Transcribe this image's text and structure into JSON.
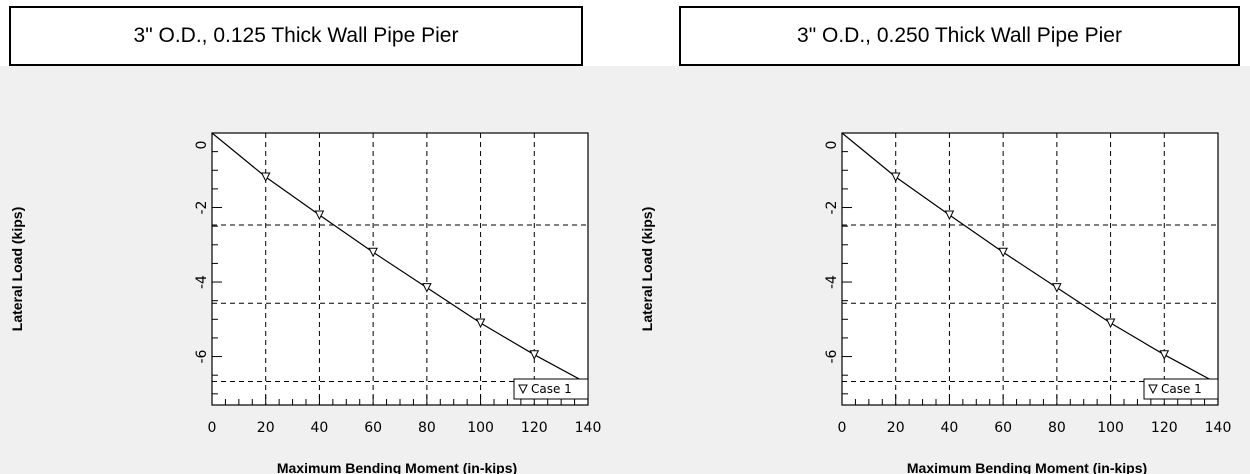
{
  "charts": [
    {
      "title": "3\" O.D., 0.125 Thick Wall Pipe Pier"
    },
    {
      "title": "3\" O.D., 0.250 Thick Wall Pipe Pier"
    }
  ],
  "chart_data": [
    {
      "type": "line",
      "title": "3\" O.D., 0.125 Thick Wall Pipe Pier",
      "xlabel": "Maximum Bending Moment (in-kips)",
      "ylabel": "Lateral Load (kips)",
      "xlim": [
        0,
        140
      ],
      "ylim": [
        -7.3,
        0
      ],
      "xticks": [
        0,
        20,
        40,
        60,
        80,
        100,
        120,
        140
      ],
      "yticks": [
        0,
        -2,
        -4,
        -6
      ],
      "grid": true,
      "legend": "bottom-right",
      "series": [
        {
          "name": "Case 1",
          "marker": "triangle-down",
          "x": [
            0,
            20,
            40,
            60,
            80,
            100,
            120,
            140
          ],
          "y": [
            0,
            -1.18,
            -2.2,
            -3.2,
            -4.15,
            -5.1,
            -5.95,
            -6.73
          ],
          "marker_x": [
            20,
            40,
            60,
            80,
            100,
            120
          ],
          "marker_y": [
            -1.18,
            -2.2,
            -3.2,
            -4.15,
            -5.1,
            -5.95
          ]
        }
      ]
    },
    {
      "type": "line",
      "title": "3\" O.D., 0.250 Thick Wall Pipe Pier",
      "xlabel": "Maximum Bending Moment (in-kips)",
      "ylabel": "Lateral Load (kips)",
      "xlim": [
        0,
        140
      ],
      "ylim": [
        -7.3,
        0
      ],
      "xticks": [
        0,
        20,
        40,
        60,
        80,
        100,
        120,
        140
      ],
      "yticks": [
        0,
        -2,
        -4,
        -6
      ],
      "grid": true,
      "legend": "bottom-right",
      "series": [
        {
          "name": "Case 1",
          "marker": "triangle-down",
          "x": [
            0,
            20,
            40,
            60,
            80,
            100,
            120,
            140
          ],
          "y": [
            0,
            -1.18,
            -2.2,
            -3.2,
            -4.15,
            -5.1,
            -5.95,
            -6.73
          ],
          "marker_x": [
            20,
            40,
            60,
            80,
            100,
            120
          ],
          "marker_y": [
            -1.18,
            -2.2,
            -3.2,
            -4.15,
            -5.1,
            -5.95
          ]
        }
      ]
    }
  ]
}
